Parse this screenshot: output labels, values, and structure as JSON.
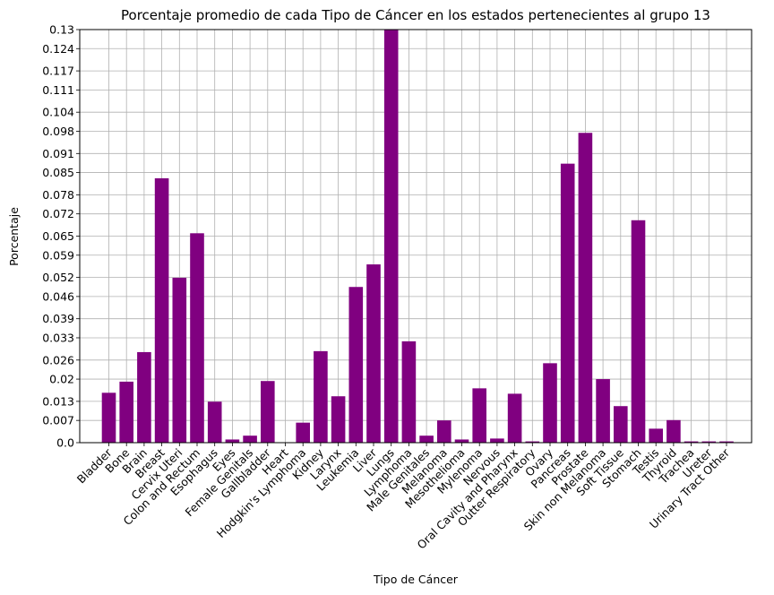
{
  "chart_data": {
    "type": "bar",
    "title": "Porcentaje promedio de cada Tipo de Cáncer en los estados pertenecientes al grupo 13",
    "xlabel": "Tipo de Cáncer",
    "ylabel": "Porcentaje",
    "ylim": [
      0,
      0.13
    ],
    "yticks": [
      "0.0",
      "0.007",
      "0.013",
      "0.02",
      "0.026",
      "0.033",
      "0.039",
      "0.046",
      "0.052",
      "0.059",
      "0.065",
      "0.072",
      "0.078",
      "0.085",
      "0.091",
      "0.098",
      "0.104",
      "0.111",
      "0.117",
      "0.124",
      "0.13"
    ],
    "grid": true,
    "bar_color": "#800080",
    "grid_color": "#b0b0b0",
    "categories": [
      "Bladder",
      "Bone",
      "Brain",
      "Breast",
      "Cervix Uteri",
      "Colon and Rectum",
      "Esophagus",
      "Eyes",
      "Female Genitals",
      "Gallbladder",
      "Heart",
      "Hodgkin's Lymphoma",
      "Kidney",
      "Larynx",
      "Leukemia",
      "Liver",
      "Lungs",
      "Lymphoma",
      "Male Genitales",
      "Melanoma",
      "Mesothelioma",
      "Mylenoma",
      "Nervous",
      "Oral Cavity and Pharynx",
      "Outter Respiratory",
      "Ovary",
      "Pancreas",
      "Prostate",
      "Skin non Melanoma",
      "Soft Tissue",
      "Stomach",
      "Testis",
      "Thyroid",
      "Trachea",
      "Ureter",
      "Urinary Tract Other"
    ],
    "values": [
      0.0157,
      0.0192,
      0.0285,
      0.0832,
      0.0519,
      0.0659,
      0.0129,
      0.001,
      0.0022,
      0.0194,
      0.0,
      0.0063,
      0.0288,
      0.0146,
      0.049,
      0.0561,
      0.13,
      0.0319,
      0.0022,
      0.007,
      0.001,
      0.0171,
      0.0013,
      0.0154,
      0.0004,
      0.025,
      0.0878,
      0.0975,
      0.02,
      0.0115,
      0.07,
      0.0044,
      0.0071,
      0.0004,
      0.0004,
      0.0004
    ]
  }
}
